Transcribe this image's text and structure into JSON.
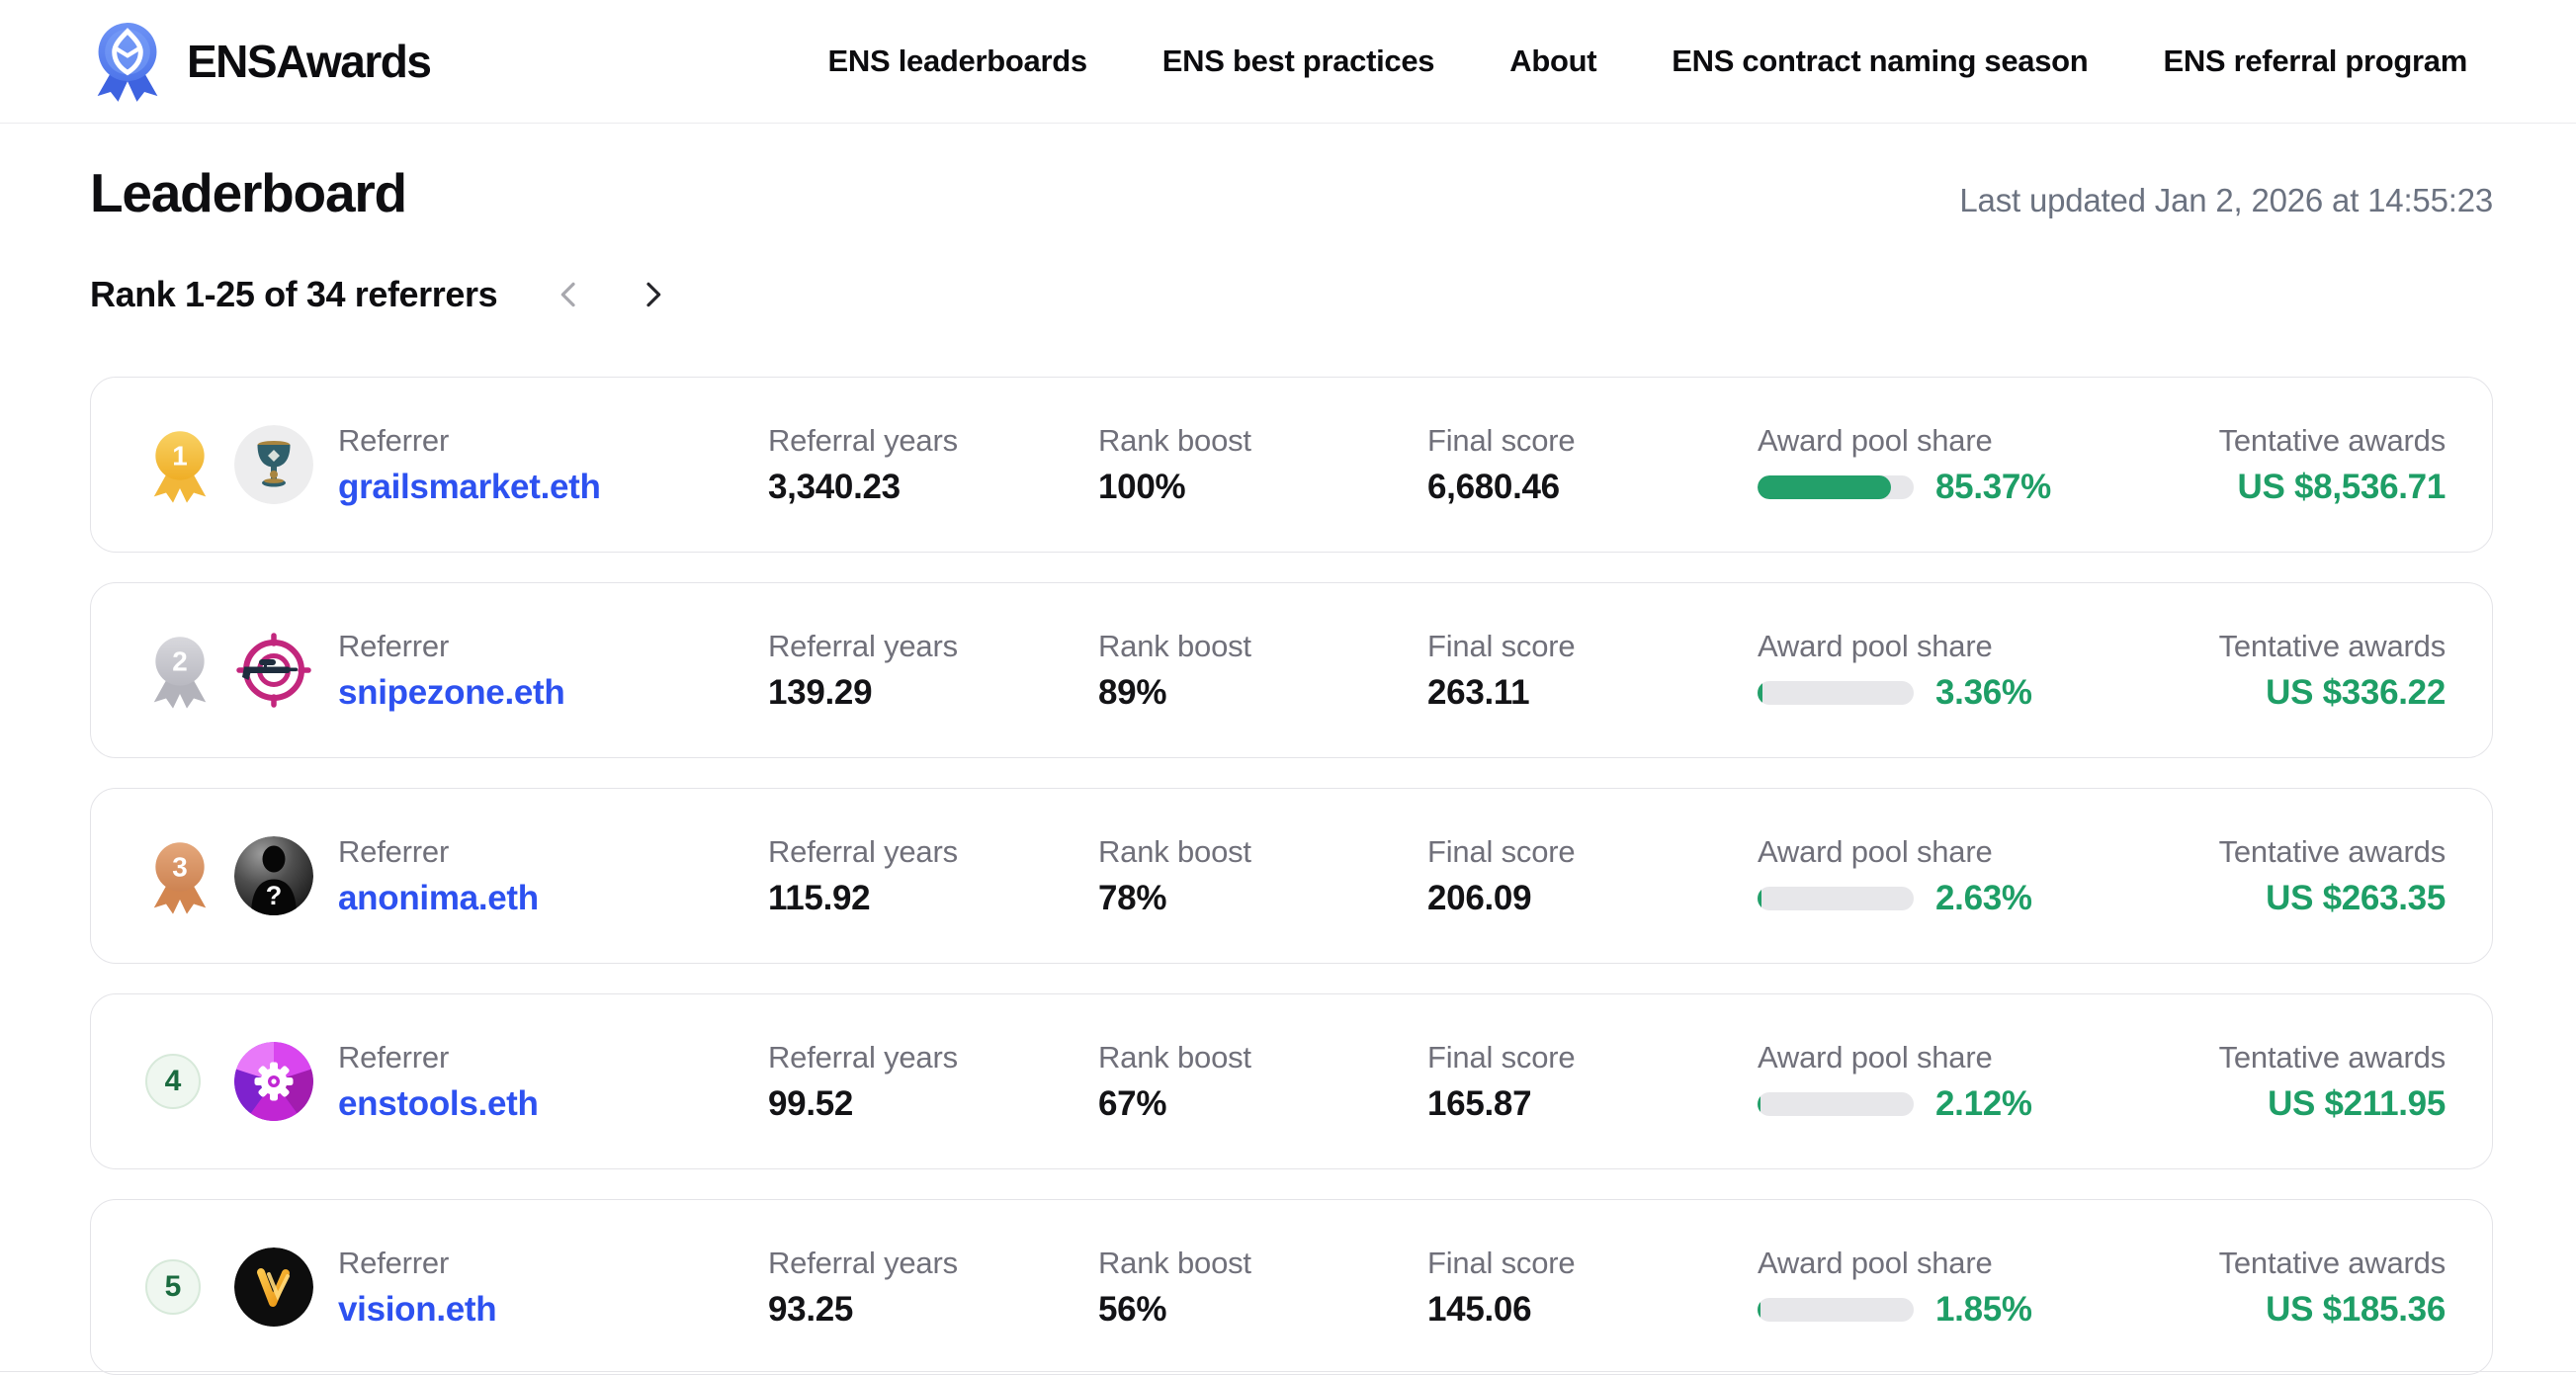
{
  "brand": {
    "name": "ENSAwards",
    "logo_icon": "blue-medal-ens-icon"
  },
  "nav": {
    "items": [
      {
        "label": "ENS leaderboards"
      },
      {
        "label": "ENS best practices"
      },
      {
        "label": "About"
      },
      {
        "label": "ENS contract naming season"
      },
      {
        "label": "ENS referral program"
      }
    ]
  },
  "page": {
    "title": "Leaderboard",
    "last_updated": "Last updated Jan 2, 2026 at 14:55:23"
  },
  "pagination": {
    "range_label": "Rank 1-25 of 34 referrers",
    "prev_icon": "chevron-left",
    "next_icon": "chevron-right"
  },
  "labels": {
    "referrer": "Referrer",
    "referral_years": "Referral years",
    "rank_boost": "Rank boost",
    "final_score": "Final score",
    "award_pool_share": "Award pool share",
    "tentative_awards": "Tentative awards"
  },
  "colors": {
    "link_blue": "#2d51f0",
    "success_green": "#1e9e66",
    "bar_track": "#e7e7ea",
    "gold_medal": "#f0b42e",
    "silver_medal": "#bcbcc3",
    "bronze_medal": "#cd8352"
  },
  "rows": [
    {
      "rank": "1",
      "medal": "gold",
      "avatar": "grail-chalice",
      "referrer": "grailsmarket.eth",
      "referral_years": "3,340.23",
      "rank_boost": "100%",
      "final_score": "6,680.46",
      "award_pool_share": "85.37%",
      "share_pct": 85.37,
      "tentative_awards": "US $8,536.71"
    },
    {
      "rank": "2",
      "medal": "silver",
      "avatar": "sniper-target",
      "referrer": "snipezone.eth",
      "referral_years": "139.29",
      "rank_boost": "89%",
      "final_score": "263.11",
      "award_pool_share": "3.36%",
      "share_pct": 3.36,
      "tentative_awards": "US $336.22"
    },
    {
      "rank": "3",
      "medal": "bronze",
      "avatar": "anonymous-silhouette",
      "referrer": "anonima.eth",
      "referral_years": "115.92",
      "rank_boost": "78%",
      "final_score": "206.09",
      "award_pool_share": "2.63%",
      "share_pct": 2.63,
      "tentative_awards": "US $263.35"
    },
    {
      "rank": "4",
      "medal": "none",
      "avatar": "purple-gear",
      "referrer": "enstools.eth",
      "referral_years": "99.52",
      "rank_boost": "67%",
      "final_score": "165.87",
      "award_pool_share": "2.12%",
      "share_pct": 2.12,
      "tentative_awards": "US $211.95"
    },
    {
      "rank": "5",
      "medal": "none",
      "avatar": "vision-v-logo",
      "referrer": "vision.eth",
      "referral_years": "93.25",
      "rank_boost": "56%",
      "final_score": "145.06",
      "award_pool_share": "1.85%",
      "share_pct": 1.85,
      "tentative_awards": "US $185.36"
    }
  ]
}
